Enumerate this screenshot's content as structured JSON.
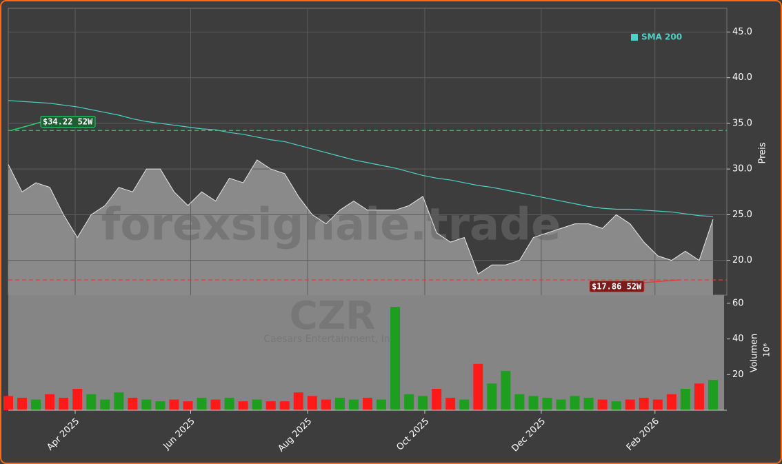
{
  "chart_data": [
    {
      "type": "area",
      "watermark": "forexsignale.trade",
      "symbol": "CZR",
      "company": "Caesars Entertainment, Inc.",
      "ylabel": "Preis",
      "xlim": [
        0,
        52
      ],
      "ylim": [
        16.2,
        47.6
      ],
      "yticks": [
        {
          "value": 20,
          "label": "20.0"
        },
        {
          "value": 25,
          "label": "25.0"
        },
        {
          "value": 30,
          "label": "30.0"
        },
        {
          "value": 35,
          "label": "35.0"
        },
        {
          "value": 40,
          "label": "40.0"
        },
        {
          "value": 45,
          "label": "45.0"
        }
      ],
      "grid": true,
      "color": "#8a8a8a",
      "line_color": "#e8e8e8",
      "values": [
        30.5,
        27.5,
        28.5,
        28,
        25,
        22.5,
        25,
        26,
        28,
        27.5,
        30,
        30,
        27.5,
        26,
        27.5,
        26.5,
        29,
        28.5,
        31,
        30,
        29.5,
        27,
        25,
        24,
        25.5,
        26.5,
        25.5,
        25.5,
        25.5,
        26,
        27,
        23,
        22,
        22.5,
        18.5,
        19.5,
        19.5,
        20,
        22.5,
        23,
        23.5,
        24,
        24,
        23.5,
        25,
        24,
        22,
        20.5,
        20,
        21,
        20,
        24.5
      ],
      "series": [
        {
          "name": "SMA 200",
          "color": "#4fd1c5",
          "values": [
            37.5,
            37.4,
            37.3,
            37.2,
            37,
            36.8,
            36.5,
            36.2,
            35.9,
            35.5,
            35.2,
            35,
            34.8,
            34.6,
            34.4,
            34.3,
            34,
            33.8,
            33.5,
            33.2,
            33,
            32.6,
            32.2,
            31.8,
            31.4,
            31,
            30.7,
            30.4,
            30.1,
            29.7,
            29.3,
            29,
            28.8,
            28.5,
            28.2,
            28,
            27.7,
            27.4,
            27.1,
            26.8,
            26.5,
            26.2,
            25.9,
            25.7,
            25.6,
            25.6,
            25.5,
            25.4,
            25.3,
            25.1,
            24.9,
            24.8
          ]
        }
      ],
      "legend": "upper right",
      "annotations": [
        {
          "label": "$34.22 52W",
          "value": 34.22,
          "color": "#2ecc71"
        },
        {
          "label": "$17.86 52W",
          "value": 17.86,
          "color": "#e83a3a"
        }
      ]
    },
    {
      "type": "bar",
      "ylabel": "Volumen",
      "ylabel_unit": "10⁶",
      "xlim": [
        0,
        52
      ],
      "ylim": [
        0,
        64.6
      ],
      "yticks": [
        20,
        40,
        60
      ],
      "up_color": "#1e9e1e",
      "down_color": "#ff1a1a",
      "values": [
        8,
        7,
        6,
        9,
        7,
        12,
        9,
        6,
        10,
        7,
        6,
        5,
        6,
        5,
        7,
        6,
        7,
        5,
        6,
        5,
        5,
        10,
        8,
        6,
        7,
        6,
        7,
        6,
        58,
        9,
        8,
        12,
        7,
        6,
        26,
        15,
        22,
        9,
        8,
        7,
        6,
        8,
        7,
        6,
        5,
        6,
        7,
        6,
        9,
        12,
        15,
        17
      ],
      "xticks": [
        {
          "value": 4.84,
          "label": "Apr 2025"
        },
        {
          "value": 13.2,
          "label": "Jun 2025"
        },
        {
          "value": 21.66,
          "label": "Aug 2025"
        },
        {
          "value": 30.14,
          "label": "Oct 2025"
        },
        {
          "value": 38.57,
          "label": "Dec 2025"
        },
        {
          "value": 46.8,
          "label": "Feb 2026"
        }
      ]
    }
  ]
}
